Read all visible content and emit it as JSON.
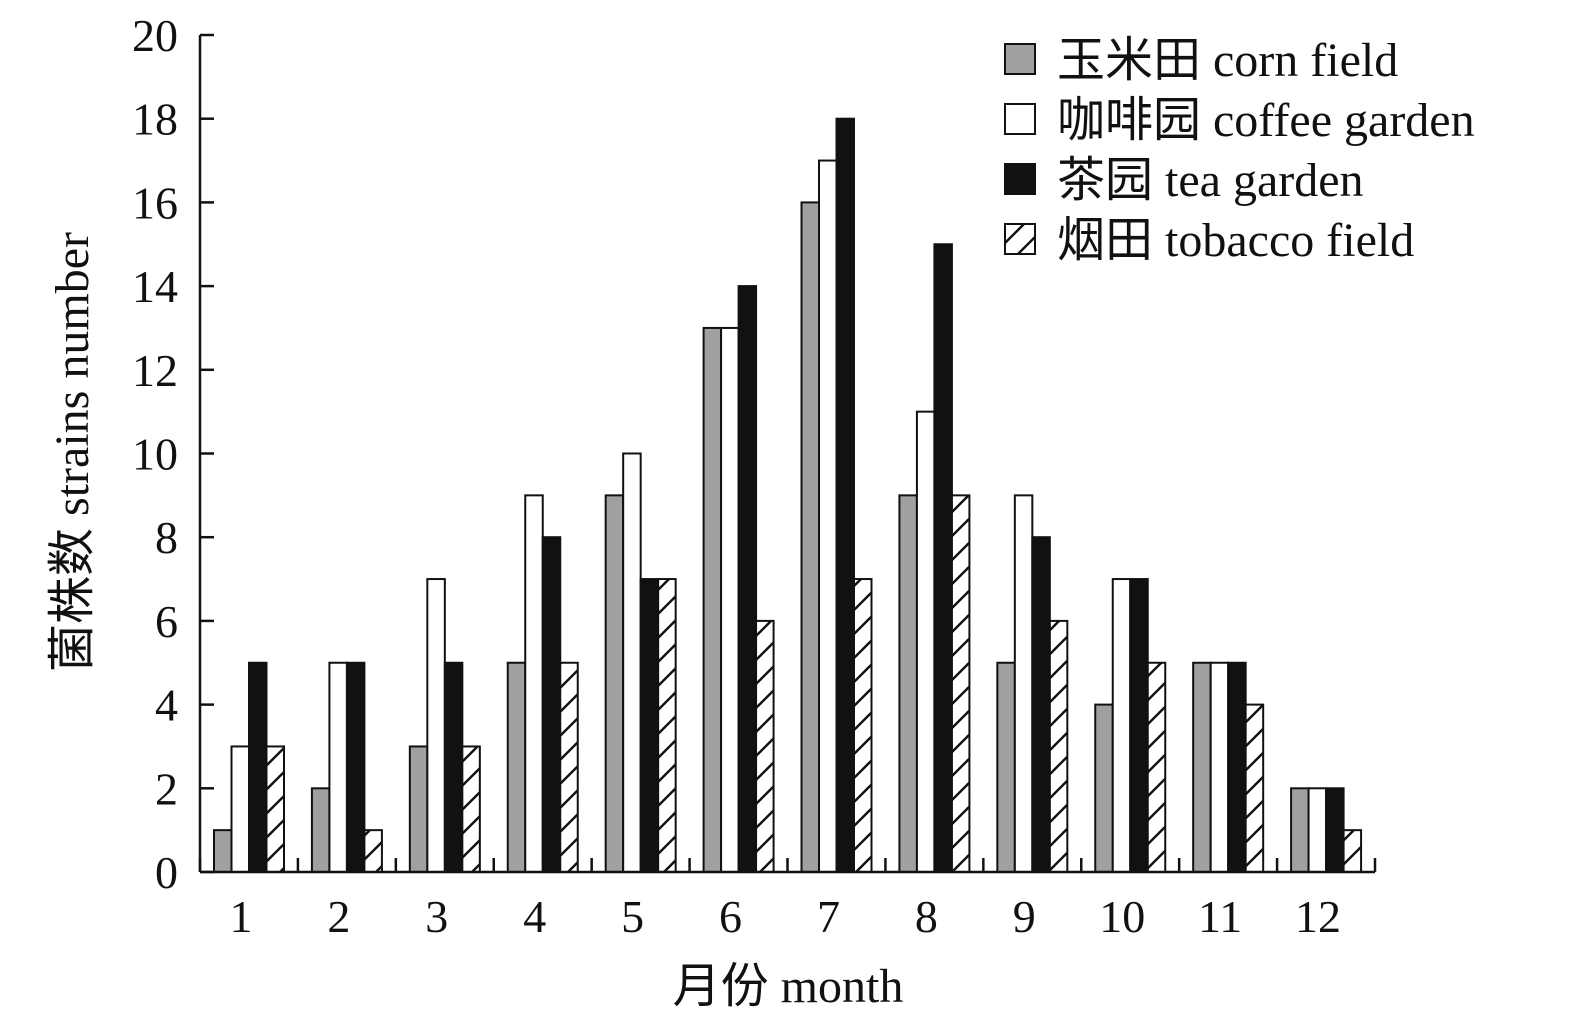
{
  "chart_data": {
    "type": "bar",
    "title": "",
    "xlabel": "月份 month",
    "ylabel": "菌株数 strains number",
    "categories": [
      "1",
      "2",
      "3",
      "4",
      "5",
      "6",
      "7",
      "8",
      "9",
      "10",
      "11",
      "12"
    ],
    "ylim": [
      0,
      20
    ],
    "yticks": [
      "0",
      "2",
      "4",
      "6",
      "8",
      "10",
      "12",
      "14",
      "16",
      "18",
      "20"
    ],
    "grid": false,
    "legend_position": "top-right",
    "series": [
      {
        "name": "玉米田 corn field",
        "style": "gray",
        "color": "#a0a0a0",
        "values": [
          1,
          2,
          3,
          5,
          9,
          13,
          16,
          9,
          5,
          4,
          5,
          2
        ]
      },
      {
        "name": "咖啡园 coffee garden",
        "style": "white",
        "color": "#ffffff",
        "values": [
          3,
          5,
          7,
          9,
          10,
          13,
          17,
          11,
          9,
          7,
          5,
          2
        ]
      },
      {
        "name": "茶园 tea garden",
        "style": "black",
        "color": "#111111",
        "values": [
          5,
          5,
          5,
          8,
          7,
          14,
          18,
          15,
          8,
          7,
          5,
          2
        ]
      },
      {
        "name": "烟田 tobacco field",
        "style": "hatched",
        "color": "#ffffff",
        "values": [
          3,
          1,
          3,
          5,
          7,
          6,
          7,
          9,
          6,
          5,
          4,
          1
        ]
      }
    ]
  }
}
